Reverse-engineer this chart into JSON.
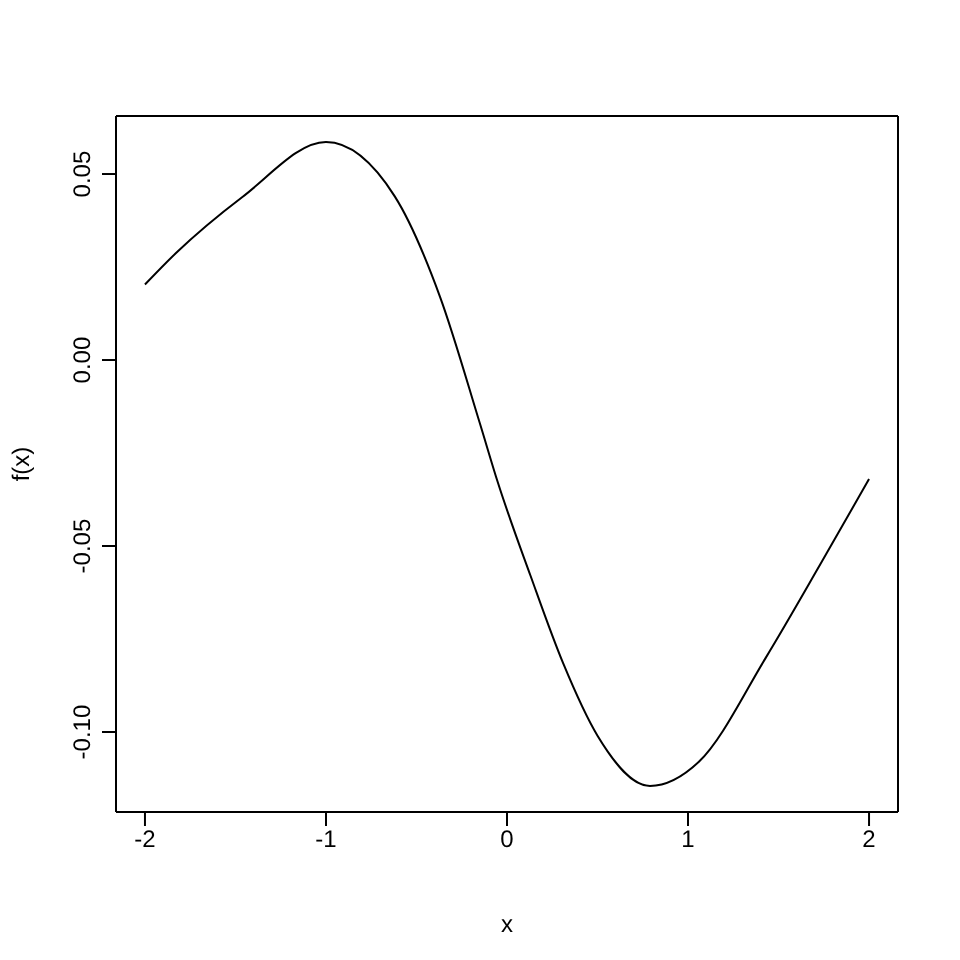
{
  "chart_data": {
    "type": "line",
    "xlabel": "x",
    "ylabel": "f(x)",
    "x": [
      -2,
      -1.83,
      -1.46,
      -1,
      -0.62,
      -0.37,
      -0.15,
      -0.05,
      0.13,
      0.31,
      0.5,
      0.79,
      1.06,
      1.43,
      1.73,
      2
    ],
    "series": [
      {
        "color": "#000000",
        "values": [
          0.0203,
          0.0287,
          0.0439,
          0.0586,
          0.044,
          0.017,
          -0.017,
          -0.033,
          -0.058,
          -0.0815,
          -0.101,
          -0.1145,
          -0.108,
          -0.08,
          -0.055,
          -0.032
        ]
      }
    ],
    "xlim": [
      -2.16,
      2.16
    ],
    "xticks": [
      -2,
      -1,
      0,
      1,
      2
    ],
    "ylim": [
      -0.1215,
      0.0656
    ],
    "yticks": [
      {
        "value": -0.1,
        "label": "-0.10"
      },
      {
        "value": -0.05,
        "label": "-0.05"
      },
      {
        "value": 0,
        "label": "0.00"
      },
      {
        "value": 0.05,
        "label": "0.05"
      }
    ],
    "grid": false,
    "legend": false,
    "marker": "none",
    "line_style": "solid"
  }
}
